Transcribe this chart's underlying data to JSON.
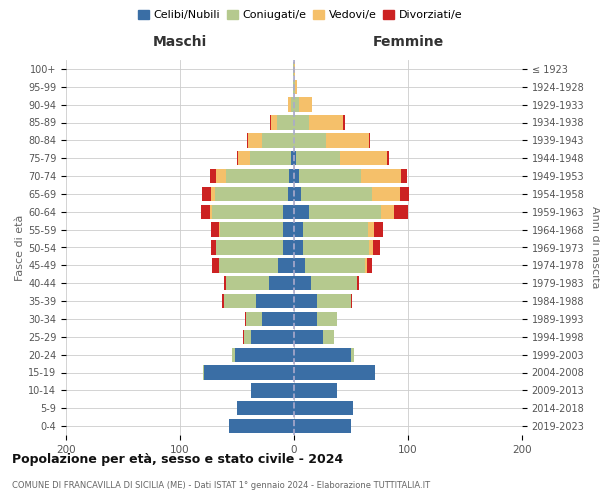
{
  "age_groups": [
    "0-4",
    "5-9",
    "10-14",
    "15-19",
    "20-24",
    "25-29",
    "30-34",
    "35-39",
    "40-44",
    "45-49",
    "50-54",
    "55-59",
    "60-64",
    "65-69",
    "70-74",
    "75-79",
    "80-84",
    "85-89",
    "90-94",
    "95-99",
    "100+"
  ],
  "birth_years": [
    "2019-2023",
    "2014-2018",
    "2009-2013",
    "2004-2008",
    "1999-2003",
    "1994-1998",
    "1989-1993",
    "1984-1988",
    "1979-1983",
    "1974-1978",
    "1969-1973",
    "1964-1968",
    "1959-1963",
    "1954-1958",
    "1949-1953",
    "1944-1948",
    "1939-1943",
    "1934-1938",
    "1929-1933",
    "1924-1928",
    "≤ 1923"
  ],
  "males": {
    "celibi": [
      57,
      50,
      38,
      79,
      52,
      38,
      28,
      33,
      22,
      14,
      10,
      10,
      10,
      5,
      4,
      3,
      0,
      0,
      0,
      0,
      0
    ],
    "coniugati": [
      0,
      0,
      0,
      1,
      2,
      6,
      14,
      28,
      38,
      52,
      58,
      55,
      62,
      64,
      56,
      36,
      28,
      15,
      3,
      1,
      1
    ],
    "vedovi": [
      0,
      0,
      0,
      0,
      0,
      0,
      0,
      0,
      0,
      0,
      0,
      1,
      2,
      4,
      8,
      10,
      12,
      5,
      2,
      0,
      0
    ],
    "divorziati": [
      0,
      0,
      0,
      0,
      0,
      1,
      1,
      2,
      1,
      6,
      5,
      7,
      8,
      8,
      6,
      1,
      1,
      1,
      0,
      0,
      0
    ]
  },
  "females": {
    "nubili": [
      50,
      52,
      38,
      71,
      50,
      25,
      20,
      20,
      15,
      10,
      8,
      8,
      13,
      6,
      4,
      2,
      0,
      0,
      0,
      0,
      0
    ],
    "coniugate": [
      0,
      0,
      0,
      0,
      3,
      10,
      18,
      30,
      40,
      52,
      58,
      57,
      63,
      62,
      55,
      38,
      28,
      13,
      4,
      1,
      0
    ],
    "vedove": [
      0,
      0,
      0,
      0,
      0,
      0,
      0,
      0,
      0,
      2,
      3,
      5,
      12,
      25,
      35,
      42,
      38,
      30,
      12,
      2,
      1
    ],
    "divorziate": [
      0,
      0,
      0,
      0,
      0,
      0,
      0,
      1,
      2,
      4,
      6,
      8,
      12,
      8,
      5,
      1,
      1,
      2,
      0,
      0,
      0
    ]
  },
  "colors": {
    "celibi": "#3a6ea5",
    "coniugati": "#b5c98e",
    "vedovi": "#f5c06a",
    "divorziati": "#cc2222"
  },
  "title": "Popolazione per età, sesso e stato civile - 2024",
  "subtitle": "COMUNE DI FRANCAVILLA DI SICILIA (ME) - Dati ISTAT 1° gennaio 2024 - Elaborazione TUTTITALIA.IT",
  "xlabel_left": "Maschi",
  "xlabel_right": "Femmine",
  "ylabel_left": "Fasce di età",
  "ylabel_right": "Anni di nascita",
  "xlim": 200,
  "background_color": "#ffffff",
  "grid_color": "#cccccc"
}
